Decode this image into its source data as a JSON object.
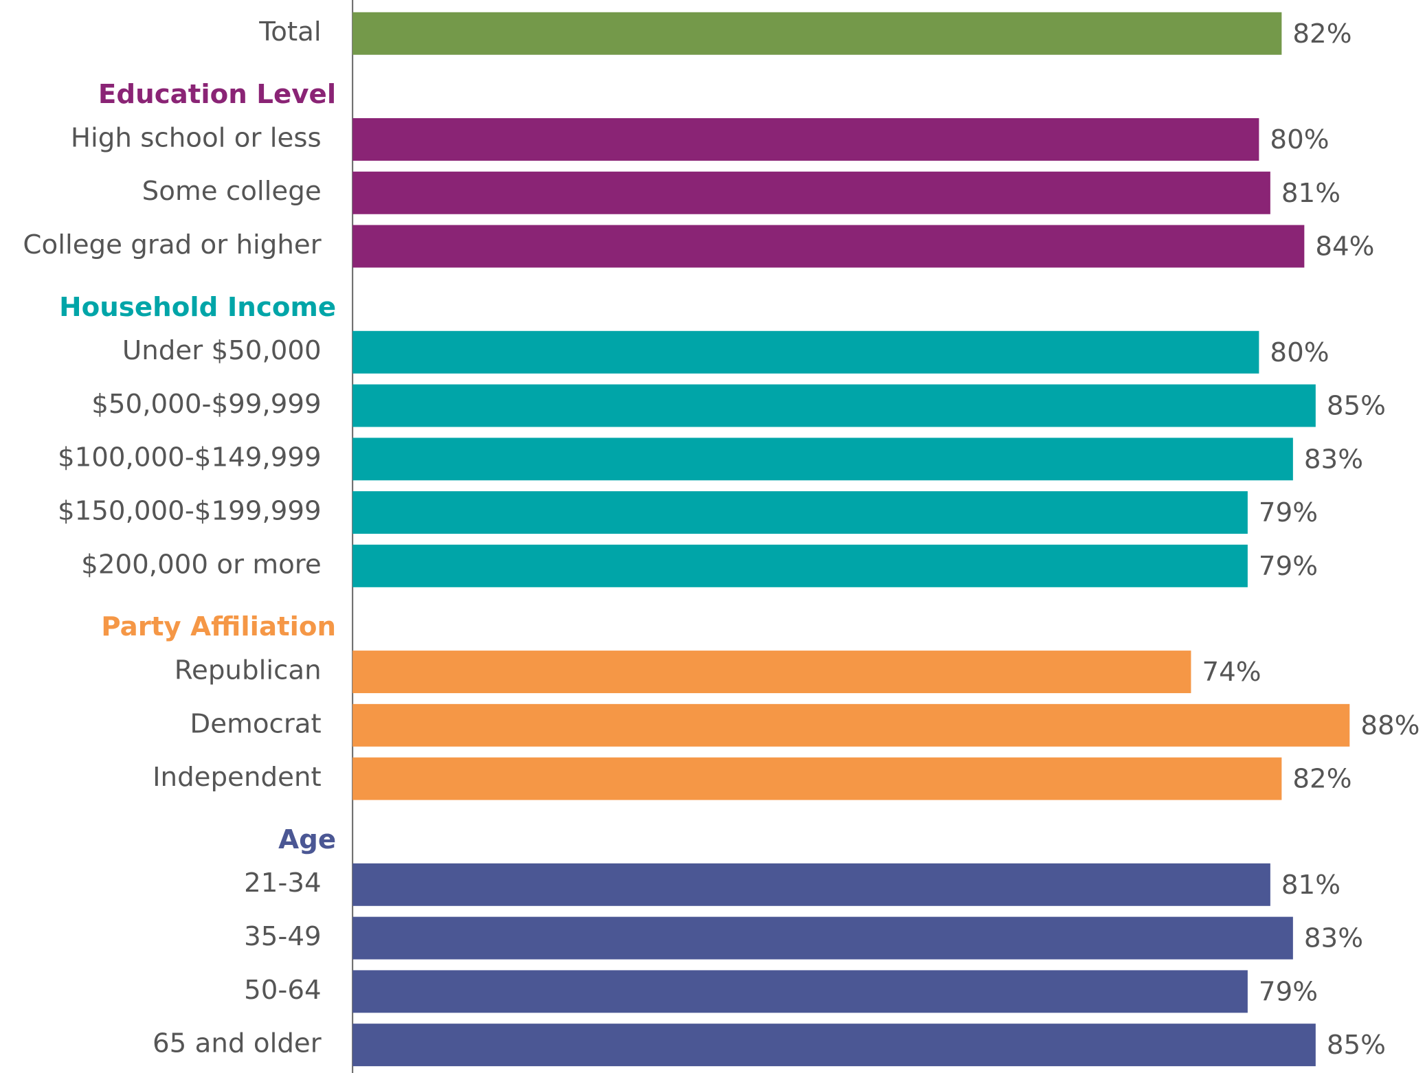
{
  "chart_data": {
    "type": "bar",
    "total": {
      "label": "Total",
      "value": 82,
      "value_label": "82%",
      "color": "#74994a"
    },
    "groups": [
      {
        "name": "Education Level",
        "color": "#8a2475",
        "categories": [
          "High school or less",
          "Some college",
          "College grad or higher"
        ],
        "values": [
          80,
          81,
          84
        ],
        "value_labels": [
          "80%",
          "81%",
          "84%"
        ]
      },
      {
        "name": "Household Income",
        "color": "#00a5a8",
        "categories": [
          "Under $50,000",
          "$50,000-$99,999",
          "$100,000-$149,999",
          "$150,000-$199,999",
          "$200,000 or more"
        ],
        "values": [
          80,
          85,
          83,
          79,
          79
        ],
        "value_labels": [
          "80%",
          "85%",
          "83%",
          "79%",
          "79%"
        ]
      },
      {
        "name": "Party Affiliation",
        "color": "#f59746",
        "categories": [
          "Republican",
          "Democrat",
          "Independent"
        ],
        "values": [
          74,
          88,
          82
        ],
        "value_labels": [
          "74%",
          "88%",
          "82%"
        ]
      },
      {
        "name": "Age",
        "color": "#4b5794",
        "categories": [
          "21-34",
          "35-49",
          "50-64",
          "65 and older"
        ],
        "values": [
          81,
          83,
          79,
          85
        ],
        "value_labels": [
          "81%",
          "83%",
          "79%",
          "85%"
        ]
      }
    ]
  }
}
